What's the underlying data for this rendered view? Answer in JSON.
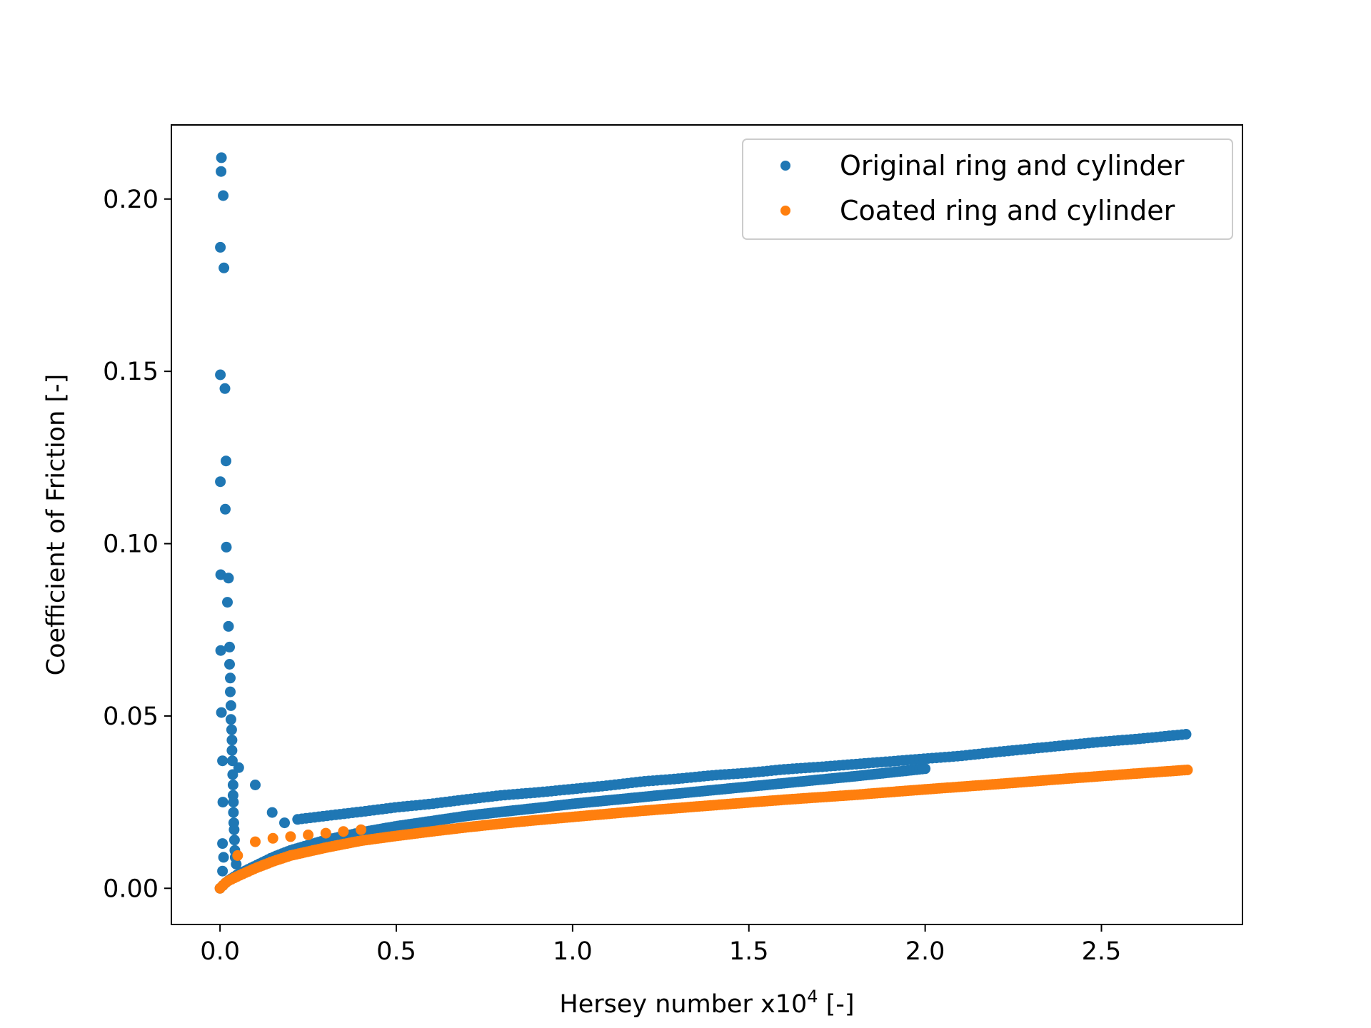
{
  "chart_data": {
    "type": "scatter",
    "xlabel": "Hersey number x10",
    "xlabel_superscript": "4",
    "xlabel_suffix": " [-]",
    "ylabel": "Coefficient of Friction [-]",
    "xlim": [
      -0.138,
      2.9
    ],
    "ylim": [
      -0.0105,
      0.2215
    ],
    "xticks": [
      0.0,
      0.5,
      1.0,
      1.5,
      2.0,
      2.5
    ],
    "xtick_labels": [
      "0.0",
      "0.5",
      "1.0",
      "1.5",
      "2.0",
      "2.5"
    ],
    "yticks": [
      0.0,
      0.05,
      0.1,
      0.15,
      0.2
    ],
    "ytick_labels": [
      "0.00",
      "0.05",
      "0.10",
      "0.15",
      "0.20"
    ],
    "grid": false,
    "legend_position": "top-right",
    "series": [
      {
        "name": "Original ring and cylinder",
        "color": "#1f77b4",
        "spike_points": [
          [
            0.004,
            0.212
          ],
          [
            0.003,
            0.208
          ],
          [
            0.009,
            0.201
          ],
          [
            0.001,
            0.186
          ],
          [
            0.011,
            0.18
          ],
          [
            0.001,
            0.149
          ],
          [
            0.014,
            0.145
          ],
          [
            0.017,
            0.124
          ],
          [
            0.001,
            0.118
          ],
          [
            0.015,
            0.11
          ],
          [
            0.018,
            0.099
          ],
          [
            0.002,
            0.091
          ],
          [
            0.024,
            0.09
          ],
          [
            0.021,
            0.083
          ],
          [
            0.024,
            0.076
          ],
          [
            0.027,
            0.07
          ],
          [
            0.002,
            0.069
          ],
          [
            0.027,
            0.065
          ],
          [
            0.029,
            0.061
          ],
          [
            0.029,
            0.057
          ],
          [
            0.031,
            0.053
          ],
          [
            0.004,
            0.051
          ],
          [
            0.031,
            0.049
          ],
          [
            0.033,
            0.046
          ],
          [
            0.034,
            0.043
          ],
          [
            0.034,
            0.04
          ],
          [
            0.035,
            0.037
          ],
          [
            0.007,
            0.037
          ],
          [
            0.053,
            0.035
          ],
          [
            0.036,
            0.033
          ],
          [
            0.1,
            0.03
          ],
          [
            0.037,
            0.03
          ],
          [
            0.037,
            0.027
          ],
          [
            0.038,
            0.025
          ],
          [
            0.008,
            0.025
          ],
          [
            0.038,
            0.022
          ],
          [
            0.148,
            0.022
          ],
          [
            0.039,
            0.019
          ],
          [
            0.04,
            0.017
          ],
          [
            0.183,
            0.019
          ],
          [
            0.041,
            0.014
          ],
          [
            0.007,
            0.013
          ],
          [
            0.042,
            0.011
          ],
          [
            0.043,
            0.009
          ],
          [
            0.01,
            0.009
          ],
          [
            0.046,
            0.007
          ],
          [
            0.007,
            0.005
          ]
        ],
        "upper_branch": [
          [
            0.22,
            0.02
          ],
          [
            0.3,
            0.021
          ],
          [
            0.4,
            0.0222
          ],
          [
            0.5,
            0.0235
          ],
          [
            0.6,
            0.0245
          ],
          [
            0.7,
            0.0258
          ],
          [
            0.8,
            0.027
          ],
          [
            0.9,
            0.0278
          ],
          [
            1.0,
            0.0288
          ],
          [
            1.1,
            0.0298
          ],
          [
            1.2,
            0.031
          ],
          [
            1.3,
            0.0318
          ],
          [
            1.4,
            0.0328
          ],
          [
            1.5,
            0.0335
          ],
          [
            1.6,
            0.0345
          ],
          [
            1.7,
            0.0352
          ],
          [
            1.8,
            0.036
          ],
          [
            1.9,
            0.0368
          ],
          [
            2.0,
            0.0376
          ],
          [
            2.1,
            0.0384
          ],
          [
            2.2,
            0.0395
          ],
          [
            2.3,
            0.0405
          ],
          [
            2.4,
            0.0415
          ],
          [
            2.5,
            0.0425
          ],
          [
            2.6,
            0.0433
          ],
          [
            2.75,
            0.0448
          ]
        ],
        "lower_branch": [
          [
            0.0,
            0.0
          ],
          [
            0.02,
            0.002
          ],
          [
            0.05,
            0.004
          ],
          [
            0.1,
            0.0065
          ],
          [
            0.15,
            0.009
          ],
          [
            0.2,
            0.011
          ],
          [
            0.3,
            0.014
          ],
          [
            0.4,
            0.0162
          ],
          [
            0.5,
            0.018
          ],
          [
            0.6,
            0.0195
          ],
          [
            0.7,
            0.021
          ],
          [
            0.8,
            0.0222
          ],
          [
            0.9,
            0.0233
          ],
          [
            1.0,
            0.0245
          ],
          [
            1.2,
            0.0265
          ],
          [
            1.4,
            0.0285
          ],
          [
            1.6,
            0.0305
          ],
          [
            1.8,
            0.0325
          ],
          [
            2.0,
            0.0347
          ]
        ]
      },
      {
        "name": "Coated ring and cylinder",
        "color": "#ff7f0e",
        "scattered_points": [
          [
            0.1,
            0.0135
          ],
          [
            0.05,
            0.0095
          ],
          [
            0.15,
            0.0145
          ],
          [
            0.2,
            0.015
          ],
          [
            0.25,
            0.0155
          ],
          [
            0.3,
            0.016
          ],
          [
            0.35,
            0.0165
          ],
          [
            0.4,
            0.017
          ]
        ],
        "curve": [
          [
            0.0,
            0.0
          ],
          [
            0.02,
            0.002
          ],
          [
            0.05,
            0.0035
          ],
          [
            0.1,
            0.0058
          ],
          [
            0.15,
            0.0078
          ],
          [
            0.2,
            0.0095
          ],
          [
            0.3,
            0.0118
          ],
          [
            0.4,
            0.0138
          ],
          [
            0.5,
            0.0152
          ],
          [
            0.6,
            0.0165
          ],
          [
            0.7,
            0.0177
          ],
          [
            0.8,
            0.0188
          ],
          [
            0.9,
            0.0198
          ],
          [
            1.0,
            0.0207
          ],
          [
            1.2,
            0.0225
          ],
          [
            1.4,
            0.0241
          ],
          [
            1.6,
            0.0257
          ],
          [
            1.8,
            0.0271
          ],
          [
            2.0,
            0.0287
          ],
          [
            2.2,
            0.0302
          ],
          [
            2.4,
            0.0318
          ],
          [
            2.6,
            0.0333
          ],
          [
            2.75,
            0.0344
          ]
        ]
      }
    ]
  }
}
